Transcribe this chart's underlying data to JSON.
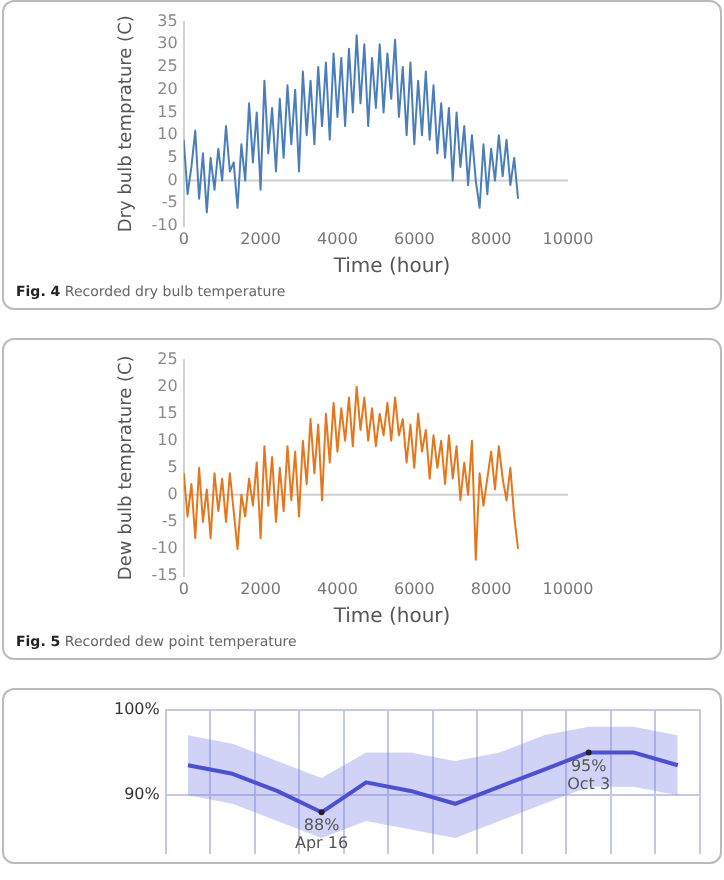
{
  "chart_data": [
    {
      "type": "line",
      "title": "Fig. 4 Recorded dry bulb temperature",
      "xlabel": "Time (hour)",
      "ylabel": "Dry bulb temprature (C)",
      "x": [
        0,
        100,
        200,
        300,
        400,
        500,
        600,
        700,
        800,
        900,
        1000,
        1100,
        1200,
        1300,
        1400,
        1500,
        1600,
        1700,
        1800,
        1900,
        2000,
        2100,
        2200,
        2300,
        2400,
        2500,
        2600,
        2700,
        2800,
        2900,
        3000,
        3100,
        3200,
        3300,
        3400,
        3500,
        3600,
        3700,
        3800,
        3900,
        4000,
        4100,
        4200,
        4300,
        4400,
        4500,
        4600,
        4700,
        4800,
        4900,
        5000,
        5100,
        5200,
        5300,
        5400,
        5500,
        5600,
        5700,
        5800,
        5900,
        6000,
        6100,
        6200,
        6300,
        6400,
        6500,
        6600,
        6700,
        6800,
        6900,
        7000,
        7100,
        7200,
        7300,
        7400,
        7500,
        7600,
        7700,
        7800,
        7900,
        8000,
        8100,
        8200,
        8300,
        8400,
        8500,
        8600,
        8700
      ],
      "series": [
        {
          "color": "#4a7ebb",
          "values": [
            9,
            -3,
            3,
            11,
            -4,
            6,
            -7,
            5,
            -2,
            7,
            0,
            12,
            2,
            4,
            -6,
            8,
            0,
            17,
            4,
            15,
            -2,
            22,
            6,
            16,
            2,
            18,
            5,
            21,
            8,
            20,
            2,
            24,
            10,
            22,
            8,
            25,
            12,
            26,
            9,
            28,
            14,
            27,
            12,
            29,
            15,
            32,
            17,
            30,
            12,
            27,
            16,
            30,
            15,
            28,
            18,
            31,
            14,
            25,
            10,
            26,
            8,
            22,
            10,
            24,
            9,
            21,
            6,
            17,
            5,
            16,
            0,
            15,
            3,
            12,
            -1,
            10,
            0,
            -6,
            8,
            -3,
            7,
            0,
            10,
            1,
            9,
            -1,
            5,
            -4
          ]
        }
      ],
      "ref_lines": [
        {
          "axis": "y",
          "value": 0,
          "color": "#d0d0d0"
        }
      ],
      "xlim": [
        0,
        10000
      ],
      "xticks": [
        0,
        2000,
        4000,
        6000,
        8000,
        10000
      ],
      "ylim": [
        -10,
        35
      ],
      "yticks": [
        -10,
        -5,
        0,
        5,
        10,
        15,
        20,
        25,
        30,
        35
      ],
      "grid": false,
      "legend": false,
      "marker": "none"
    },
    {
      "type": "line",
      "title": "Fig. 5 Recorded dew point temperature",
      "xlabel": "Time (hour)",
      "ylabel": "Dew bulb temprature (C)",
      "x": [
        0,
        100,
        200,
        300,
        400,
        500,
        600,
        700,
        800,
        900,
        1000,
        1100,
        1200,
        1300,
        1400,
        1500,
        1600,
        1700,
        1800,
        1900,
        2000,
        2100,
        2200,
        2300,
        2400,
        2500,
        2600,
        2700,
        2800,
        2900,
        3000,
        3100,
        3200,
        3300,
        3400,
        3500,
        3600,
        3700,
        3800,
        3900,
        4000,
        4100,
        4200,
        4300,
        4400,
        4500,
        4600,
        4700,
        4800,
        4900,
        5000,
        5100,
        5200,
        5300,
        5400,
        5500,
        5600,
        5700,
        5800,
        5900,
        6000,
        6100,
        6200,
        6300,
        6400,
        6500,
        6600,
        6700,
        6800,
        6900,
        7000,
        7100,
        7200,
        7300,
        7400,
        7500,
        7600,
        7700,
        7800,
        7900,
        8000,
        8100,
        8200,
        8300,
        8400,
        8500,
        8600,
        8700
      ],
      "series": [
        {
          "color": "#e6761b",
          "values": [
            4,
            -4,
            2,
            -8,
            5,
            -5,
            1,
            -8,
            4,
            -3,
            3,
            -5,
            4,
            -3,
            -10,
            0,
            -4,
            3,
            -2,
            6,
            -8,
            9,
            -2,
            7,
            -5,
            5,
            -3,
            9,
            -1,
            8,
            -4,
            10,
            2,
            14,
            4,
            13,
            -1,
            15,
            6,
            17,
            8,
            16,
            10,
            18,
            9,
            20,
            12,
            18,
            10,
            16,
            9,
            15,
            11,
            17,
            10,
            18,
            11,
            14,
            6,
            13,
            5,
            15,
            8,
            12,
            3,
            11,
            5,
            10,
            2,
            11,
            3,
            9,
            -1,
            6,
            0,
            10,
            -12,
            4,
            -2,
            3,
            8,
            1,
            9,
            3,
            -1,
            5,
            -4,
            -10
          ]
        }
      ],
      "ref_lines": [
        {
          "axis": "y",
          "value": 0,
          "color": "#d0d0d0"
        }
      ],
      "xlim": [
        0,
        10000
      ],
      "xticks": [
        0,
        2000,
        4000,
        6000,
        8000,
        10000
      ],
      "ylim": [
        -15,
        25
      ],
      "yticks": [
        -15,
        -10,
        -5,
        0,
        5,
        10,
        15,
        20,
        25
      ],
      "grid": false,
      "legend": false,
      "marker": "none"
    },
    {
      "type": "line",
      "categories": [
        null,
        null,
        null,
        null,
        null,
        null,
        null,
        null,
        null,
        null,
        null,
        null
      ],
      "series": [
        {
          "color": "#3434d0",
          "values": [
            93.5,
            92.5,
            90.5,
            88,
            91.5,
            90.5,
            89,
            91,
            93,
            95,
            95,
            93.5
          ],
          "lower": [
            90,
            89,
            87,
            85,
            87,
            86,
            85,
            87,
            89,
            91,
            91,
            90
          ],
          "upper": [
            97,
            96,
            94,
            92,
            95,
            95,
            94,
            95,
            97,
            98,
            98,
            97
          ]
        }
      ],
      "annotations": [
        {
          "text": "88%",
          "y": 88
        },
        {
          "text": "Apr 16",
          "y": 88
        },
        {
          "text": "95%",
          "y": 95
        },
        {
          "text": "Oct 3",
          "y": 95
        }
      ],
      "ylim": [
        85,
        100
      ],
      "yticks": [
        {
          "value": 90,
          "label": "90%"
        },
        {
          "value": 100,
          "label": "100%"
        }
      ],
      "grid": true,
      "tick_labels": "y",
      "legend": false,
      "marker": "none"
    }
  ]
}
